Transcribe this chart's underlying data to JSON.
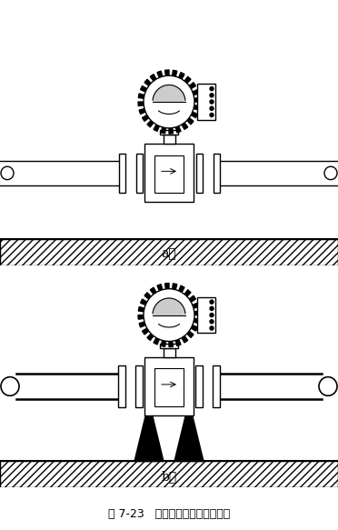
{
  "title": "图 7-23   管道振动时安装固定支架",
  "label_a": "a）",
  "label_b": "b）",
  "bg_color": "#ffffff",
  "fig_width": 3.72,
  "fig_height": 5.83,
  "lw": 1.0
}
